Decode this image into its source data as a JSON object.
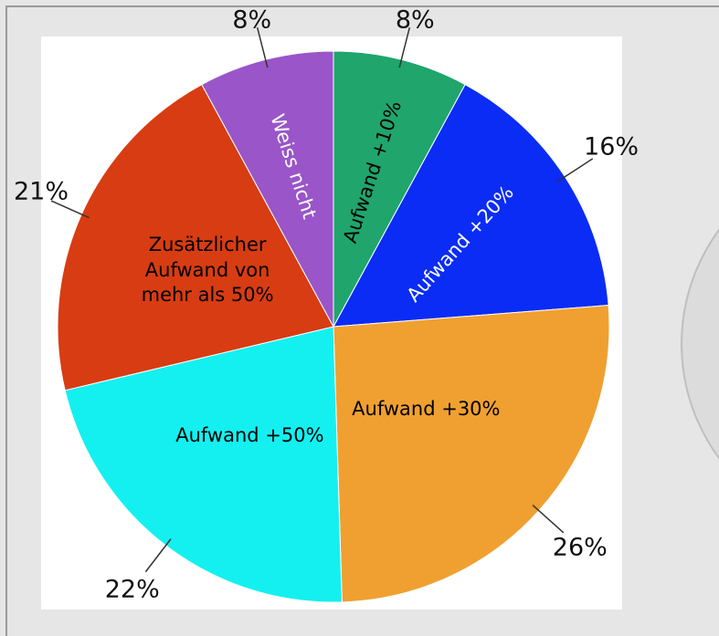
{
  "chart_data": {
    "type": "pie",
    "categories": [
      "Aufwand +10%",
      "Aufwand +20%",
      "Aufwand +30%",
      "Aufwand +50%",
      "Zusätzlicher Aufwand von mehr als 50%",
      "Weiss nicht"
    ],
    "values": [
      8,
      16,
      26,
      22,
      21,
      8
    ],
    "value_labels": [
      "8%",
      "16%",
      "26%",
      "22%",
      "21%",
      "8%"
    ],
    "colors": [
      "#20a56d",
      "#0a2cf5",
      "#f0a030",
      "#14f0f0",
      "#d83c12",
      "#9a55c8"
    ]
  }
}
